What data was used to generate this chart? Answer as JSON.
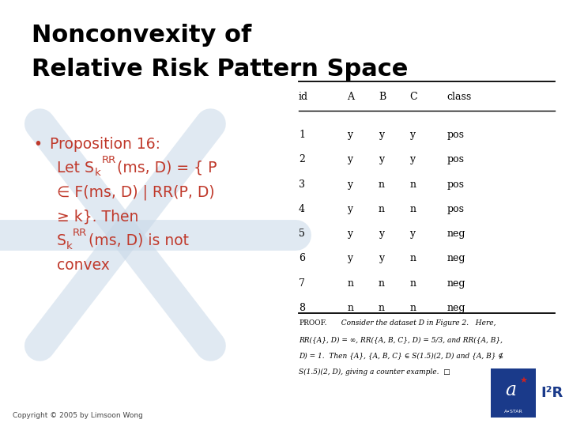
{
  "title_line1": "Nonconvexity of",
  "title_line2": "Relative Risk Pattern Space",
  "title_color": "#000000",
  "title_fontsize": 22,
  "bg_color": "#ffffff",
  "watermark_color": "#c8d8e8",
  "bullet_color": "#c0392b",
  "table_headers": [
    "id",
    "A",
    "B",
    "C",
    "class"
  ],
  "table_data": [
    [
      "1",
      "y",
      "y",
      "y",
      "pos"
    ],
    [
      "2",
      "y",
      "y",
      "y",
      "pos"
    ],
    [
      "3",
      "y",
      "n",
      "n",
      "pos"
    ],
    [
      "4",
      "y",
      "n",
      "n",
      "pos"
    ],
    [
      "5",
      "y",
      "y",
      "y",
      "neg"
    ],
    [
      "6",
      "y",
      "y",
      "n",
      "neg"
    ],
    [
      "7",
      "n",
      "n",
      "n",
      "neg"
    ],
    [
      "8",
      "n",
      "n",
      "n",
      "neg"
    ]
  ],
  "proof_lines": [
    "PROOF.  Consider the dataset D in Figure 2.   Here,",
    "RR({A}, D) = ∞, RR({A, B, C}, D) = 5/3, and RR({A, B},",
    "D) = 1.  Then {A}, {A, B, C} ∈ S(1.5)(2, D) and {A, B} ∉",
    "S(1.5)(2, D), giving a counter example.  □"
  ],
  "copyright_text": "Copyright © 2005 by Limsoon Wong",
  "logo_color": "#1a3a8a",
  "logo_star_color": "#cc2222"
}
